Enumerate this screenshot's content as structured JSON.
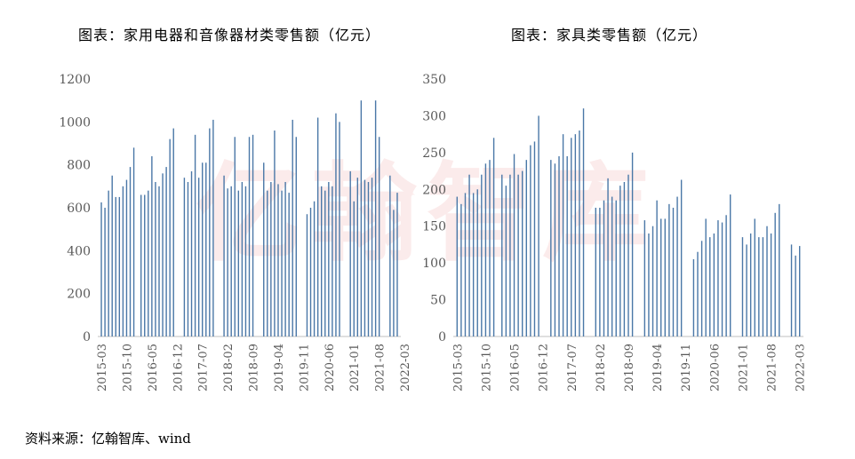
{
  "watermark": {
    "text": "亿翰智库"
  },
  "source": {
    "text": "资料来源：亿翰智库、wind"
  },
  "chart_data": [
    {
      "type": "bar",
      "title": "图表：家用电器和音像器材类零售额（亿元）",
      "ylabel": "亿元",
      "ylim": [
        0,
        1200
      ],
      "yticks": [
        0,
        200,
        400,
        600,
        800,
        1000,
        1200
      ],
      "tick_labels": [
        "2015-03",
        "2015-10",
        "2016-05",
        "2016-12",
        "2017-07",
        "2018-02",
        "2018-09",
        "2019-04",
        "2019-11",
        "2020-06",
        "2021-01",
        "2021-08",
        "2022-03"
      ],
      "start_month": "2015-03",
      "bar_color": "#4a77a7",
      "values": [
        625,
        600,
        680,
        750,
        650,
        650,
        700,
        730,
        790,
        880,
        null,
        660,
        660,
        680,
        840,
        720,
        700,
        760,
        790,
        920,
        970,
        null,
        null,
        740,
        720,
        770,
        940,
        740,
        810,
        810,
        970,
        1010,
        null,
        null,
        750,
        690,
        700,
        930,
        680,
        720,
        700,
        930,
        940,
        null,
        null,
        810,
        680,
        720,
        960,
        710,
        680,
        720,
        670,
        1010,
        930,
        null,
        null,
        570,
        600,
        630,
        1020,
        700,
        680,
        720,
        700,
        1040,
        1000,
        null,
        null,
        770,
        630,
        740,
        1100,
        730,
        720,
        740,
        1100,
        930,
        null,
        null,
        750,
        590,
        670
      ],
      "bar_width": 1.4,
      "grid": false
    },
    {
      "type": "bar",
      "title": "图表：家具类零售额（亿元）",
      "ylabel": "亿元",
      "ylim": [
        0,
        350
      ],
      "yticks": [
        0,
        50,
        100,
        150,
        200,
        250,
        300,
        350
      ],
      "tick_labels": [
        "2015-03",
        "2015-10",
        "2016-05",
        "2016-12",
        "2017-07",
        "2018-02",
        "2018-09",
        "2019-04",
        "2019-11",
        "2020-06",
        "2021-01",
        "2021-08",
        "2022-03"
      ],
      "start_month": "2015-03",
      "bar_color": "#4a77a7",
      "values": [
        190,
        180,
        195,
        220,
        195,
        200,
        220,
        235,
        240,
        270,
        null,
        220,
        205,
        220,
        248,
        220,
        225,
        240,
        260,
        265,
        300,
        null,
        null,
        240,
        235,
        245,
        275,
        245,
        270,
        275,
        280,
        310,
        null,
        null,
        175,
        175,
        185,
        215,
        190,
        185,
        205,
        210,
        220,
        250,
        null,
        null,
        158,
        140,
        150,
        185,
        160,
        160,
        180,
        175,
        190,
        213,
        null,
        null,
        105,
        115,
        130,
        160,
        135,
        140,
        158,
        155,
        165,
        193,
        null,
        null,
        135,
        125,
        140,
        160,
        135,
        135,
        150,
        140,
        168,
        180,
        null,
        null,
        125,
        110,
        123
      ],
      "bar_width": 1.4,
      "grid": false
    }
  ]
}
